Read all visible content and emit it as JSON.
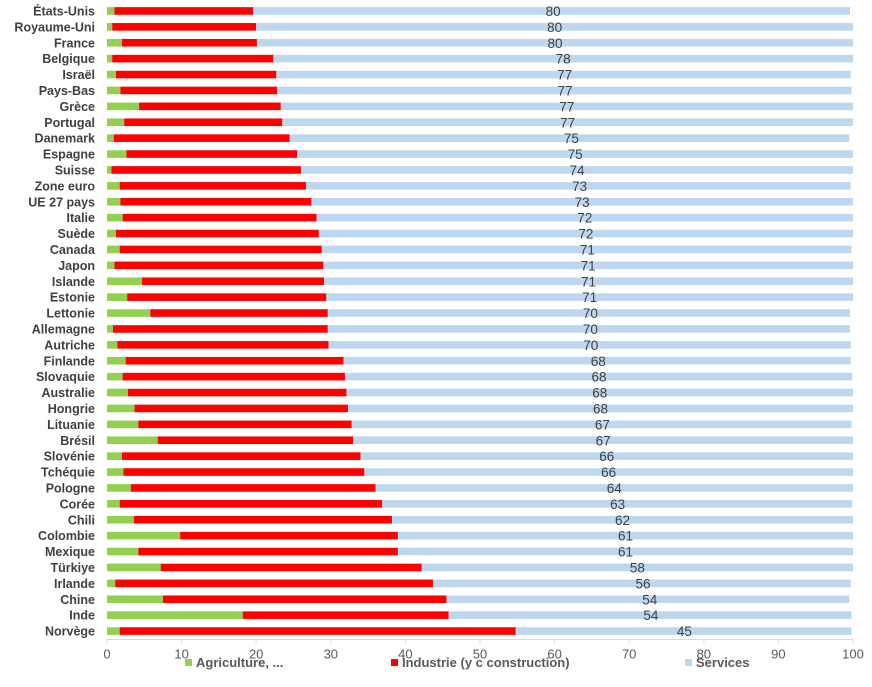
{
  "chart_data": {
    "type": "bar",
    "orientation": "horizontal",
    "stacked": true,
    "xlim": [
      0,
      100
    ],
    "xticks": [
      0,
      10,
      20,
      30,
      40,
      50,
      60,
      70,
      80,
      90,
      100
    ],
    "grid": false,
    "legend_position": "bottom",
    "categories": [
      "États-Unis",
      "Royaume-Uni",
      "France",
      "Belgique",
      "Israël",
      "Pays-Bas",
      "Grèce",
      "Portugal",
      "Danemark",
      "Espagne",
      "Suisse",
      "Zone euro",
      "UE 27 pays",
      "Italie",
      "Suède",
      "Canada",
      "Japon",
      "Islande",
      "Estonie",
      "Lettonie",
      "Allemagne",
      "Autriche",
      "Finlande",
      "Slovaquie",
      "Australie",
      "Hongrie",
      "Lituanie",
      "Brésil",
      "Slovénie",
      "Tchéquie",
      "Pologne",
      "Corée",
      "Chili",
      "Colombie",
      "Mexique",
      "Türkiye",
      "Irlande",
      "Chine",
      "Inde",
      "Norvège"
    ],
    "series": [
      {
        "name": "Agriculture, ...",
        "color": "#92d050",
        "values": [
          1.0,
          0.7,
          2.0,
          0.7,
          1.2,
          1.8,
          4.3,
          2.3,
          0.9,
          2.6,
          0.6,
          1.7,
          1.8,
          2.1,
          1.2,
          1.7,
          1.0,
          4.7,
          2.7,
          5.8,
          0.8,
          1.4,
          2.5,
          2.1,
          2.8,
          3.7,
          4.2,
          6.8,
          2.0,
          2.2,
          3.2,
          1.7,
          3.6,
          9.8,
          4.2,
          7.2,
          1.1,
          7.5,
          18.2,
          1.7
        ]
      },
      {
        "name": "Industrie (y c construction)",
        "color": "#ff0000",
        "values": [
          18.6,
          19.3,
          18.1,
          21.6,
          21.5,
          21.0,
          19.0,
          21.2,
          23.6,
          22.9,
          25.4,
          25.0,
          25.6,
          26.0,
          27.2,
          27.1,
          28.0,
          24.4,
          26.7,
          23.8,
          28.8,
          28.3,
          29.2,
          29.8,
          29.3,
          28.6,
          28.6,
          26.2,
          32.0,
          32.3,
          32.8,
          35.2,
          34.6,
          29.2,
          34.8,
          35.0,
          42.6,
          38.0,
          27.6,
          53.1
        ]
      },
      {
        "name": "Services",
        "color": "#bdd7ee",
        "values": [
          80,
          80,
          80,
          78,
          77,
          77,
          77,
          77,
          75,
          75,
          74,
          73,
          73,
          72,
          72,
          71,
          71,
          71,
          71,
          70,
          70,
          70,
          68,
          68,
          68,
          68,
          67,
          67,
          66,
          66,
          64,
          63,
          62,
          61,
          61,
          58,
          56,
          54,
          54,
          45
        ]
      }
    ],
    "data_labels": [
      "80",
      "80",
      "80",
      "78",
      "77",
      "77",
      "77",
      "77",
      "75",
      "75",
      "74",
      "73",
      "73",
      "72",
      "72",
      "71",
      "71",
      "71",
      "71",
      "70",
      "70",
      "70",
      "68",
      "68",
      "68",
      "68",
      "67",
      "67",
      "66",
      "66",
      "64",
      "63",
      "62",
      "61",
      "61",
      "58",
      "56",
      "54",
      "54",
      "45"
    ]
  }
}
